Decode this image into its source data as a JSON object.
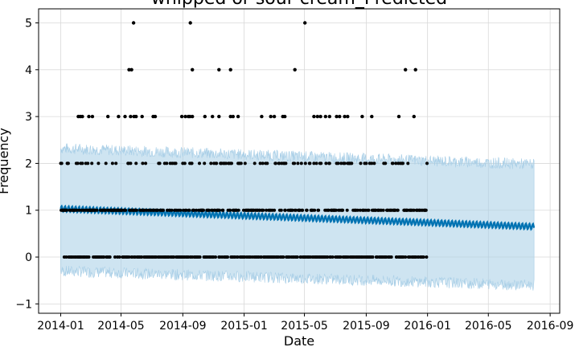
{
  "chart_data": {
    "type": "scatter",
    "title": "whipped or sour cream_Predicted",
    "xlabel": "Date",
    "ylabel": "Frequency",
    "x_range": [
      "2013-11-18",
      "2016-09-20"
    ],
    "ylim": [
      -1.2,
      5.3
    ],
    "x_ticks": [
      "2014-01",
      "2014-05",
      "2014-09",
      "2015-01",
      "2015-05",
      "2015-09",
      "2016-01",
      "2016-05",
      "2016-09"
    ],
    "y_ticks": [
      -1,
      0,
      1,
      2,
      3,
      4,
      5
    ],
    "grid": true,
    "colors": {
      "observed": "#000000",
      "forecast_line": "#0072B2",
      "uncertainty_fill": "#A6CDE6",
      "grid": "#d9d9d9"
    },
    "history_range": [
      "2014-01-01",
      "2015-12-31"
    ],
    "forecast_end": "2016-07-31",
    "series": [
      {
        "kind": "forecast",
        "trend_start": 1.03,
        "trend_end": 0.65,
        "weekly_band": 0.12
      },
      {
        "kind": "uncertainty_interval",
        "upper_start": 2.32,
        "upper_end": 1.98,
        "lower_start": -0.3,
        "lower_end": -0.6,
        "jitter": 0.12
      },
      {
        "kind": "observed",
        "points": [
          [
            "2014-02-05",
            3
          ],
          [
            "2014-02-09",
            3
          ],
          [
            "2014-02-13",
            3
          ],
          [
            "2014-02-26",
            3
          ],
          [
            "2014-03-05",
            3
          ],
          [
            "2014-04-05",
            3
          ],
          [
            "2014-04-26",
            3
          ],
          [
            "2014-05-09",
            3
          ],
          [
            "2014-05-20",
            3
          ],
          [
            "2014-05-27",
            3
          ],
          [
            "2014-05-31",
            3
          ],
          [
            "2014-06-12",
            3
          ],
          [
            "2014-07-04",
            3
          ],
          [
            "2014-07-08",
            3
          ],
          [
            "2014-08-30",
            3
          ],
          [
            "2014-09-06",
            3
          ],
          [
            "2014-09-12",
            3
          ],
          [
            "2014-09-15",
            3
          ],
          [
            "2014-09-20",
            3
          ],
          [
            "2014-10-15",
            3
          ],
          [
            "2014-10-30",
            3
          ],
          [
            "2014-11-12",
            3
          ],
          [
            "2014-12-05",
            3
          ],
          [
            "2014-12-10",
            3
          ],
          [
            "2014-12-20",
            3
          ],
          [
            "2015-02-05",
            3
          ],
          [
            "2015-02-23",
            3
          ],
          [
            "2015-03-02",
            3
          ],
          [
            "2015-03-19",
            3
          ],
          [
            "2015-03-23",
            3
          ],
          [
            "2015-05-20",
            3
          ],
          [
            "2015-05-27",
            3
          ],
          [
            "2015-06-02",
            3
          ],
          [
            "2015-06-12",
            3
          ],
          [
            "2015-06-20",
            3
          ],
          [
            "2015-07-04",
            3
          ],
          [
            "2015-07-10",
            3
          ],
          [
            "2015-07-20",
            3
          ],
          [
            "2015-07-26",
            3
          ],
          [
            "2015-08-24",
            3
          ],
          [
            "2015-09-12",
            3
          ],
          [
            "2015-11-05",
            3
          ],
          [
            "2015-12-05",
            3
          ],
          [
            "2014-05-17",
            4
          ],
          [
            "2014-05-22",
            4
          ],
          [
            "2014-09-20",
            4
          ],
          [
            "2014-11-12",
            4
          ],
          [
            "2014-12-05",
            4
          ],
          [
            "2015-04-12",
            4
          ],
          [
            "2015-11-18",
            4
          ],
          [
            "2015-12-08",
            4
          ],
          [
            "2014-05-26",
            5
          ],
          [
            "2014-09-16",
            5
          ],
          [
            "2015-05-02",
            5
          ]
        ]
      }
    ]
  }
}
